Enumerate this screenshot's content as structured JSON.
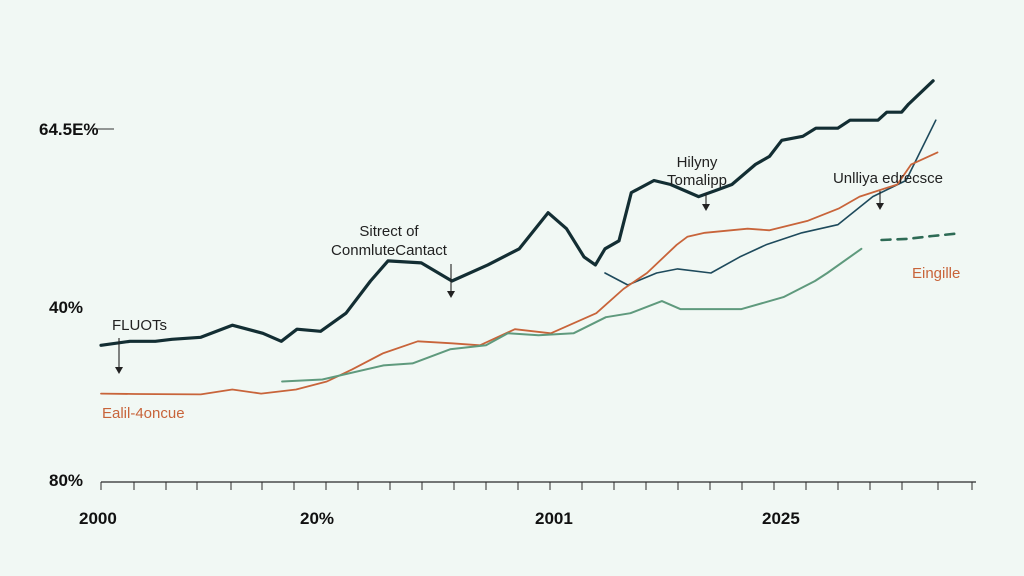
{
  "chart_data": {
    "type": "line",
    "title": "",
    "xlabel": "",
    "ylabel": "",
    "grid": false,
    "x_range": [
      0,
      100
    ],
    "y_range": [
      0,
      100
    ],
    "y_tick_labels": [
      "80%",
      "40%",
      "64.5E%"
    ],
    "x_tick_labels": [
      "2000",
      "20%",
      "2001",
      "2025"
    ],
    "colors": {
      "dark": "#132e33",
      "navy": "#1e4a5c",
      "orange": "#c8643a",
      "green": "#5f9a7d",
      "green_label": "#c8643a"
    },
    "series": [
      {
        "name": "FLUOTs",
        "color": "#132e33",
        "x": [
          0,
          3.3,
          6.2,
          8.1,
          11.4,
          15.0,
          18.5,
          20.6,
          22.4,
          25.1,
          28.0,
          30.8,
          32.8,
          36.6,
          40.1,
          44.2,
          47.8,
          51.1,
          53.2,
          55.2,
          56.5,
          57.6,
          59.2,
          60.6,
          63.2,
          65.1,
          68.3,
          70.2,
          72.1,
          74.8,
          76.4,
          77.8,
          80.2,
          81.7,
          84.2,
          85.6,
          88.8,
          89.8,
          91.5,
          92.3,
          95.1
        ],
        "y": [
          34,
          35,
          35,
          35.5,
          36,
          39,
          37,
          35,
          38,
          37.5,
          42,
          50,
          55,
          54.5,
          50,
          54,
          58,
          67,
          63,
          56,
          54,
          58,
          60,
          72,
          75,
          74,
          71,
          72.5,
          74,
          79,
          81,
          85,
          86,
          88,
          88,
          90,
          90,
          92,
          92,
          94,
          99.8
        ]
      },
      {
        "name": "Unlliya edrecsce",
        "color": "#1e4a5c",
        "x": [
          57.6,
          60.2,
          63.5,
          65.9,
          69.7,
          73.0,
          76.0,
          80.1,
          84.2,
          88.2,
          92.0,
          95.4
        ],
        "y": [
          52,
          49,
          52,
          53,
          52,
          56,
          59,
          62,
          64,
          71,
          75,
          90
        ]
      },
      {
        "name": "Ealil-4oncue",
        "color": "#c8643a",
        "x": [
          0,
          3.9,
          11.4,
          15.0,
          18.3,
          22.3,
          25.8,
          28.7,
          32.2,
          36.2,
          40.1,
          43.3,
          47.3,
          51.4,
          56.6,
          59.7,
          62.4,
          65.8,
          67.0,
          69.0,
          73.9,
          76.4,
          80.8,
          84.3,
          86.7,
          91.0,
          92.6,
          95.6
        ],
        "y": [
          22,
          21.9,
          21.8,
          23,
          22,
          23,
          25,
          28,
          32,
          35,
          34.5,
          34,
          38,
          37,
          42,
          48,
          52,
          59,
          61,
          62,
          63,
          62.6,
          65,
          68,
          71,
          74,
          79,
          82
        ]
      },
      {
        "name": "Eingille",
        "color": "#5f9a7d",
        "x": [
          20.7,
          25.3,
          32.3,
          35.6,
          39.9,
          44.0,
          46.5,
          50.0,
          54.0,
          57.7,
          60.5,
          64.1,
          66.2,
          69.3,
          73.2,
          78.0,
          81.6,
          83.0,
          86.9
        ],
        "y": [
          25,
          25.5,
          29,
          29.5,
          33,
          34,
          37,
          36.5,
          37,
          41,
          42,
          45,
          43,
          43,
          43,
          46,
          50,
          52,
          58
        ]
      },
      {
        "name": "Eingille (projection)",
        "color": "#2e6b55",
        "dashed": true,
        "x": [
          89.2,
          92.3,
          95.0,
          97.8
        ],
        "y": [
          60.2,
          60.5,
          61.2,
          61.8
        ]
      }
    ],
    "annotations": [
      {
        "lines": [
          "FLUOTs"
        ],
        "x": 2.0,
        "y": 34.7
      },
      {
        "lines": [
          "Sitrect of",
          "ConmluteCantact"
        ],
        "x": 39.6,
        "y": 49.5
      },
      {
        "lines": [
          "Hilyny",
          "Tomalipp"
        ],
        "x": 68.6,
        "y": 75.5
      },
      {
        "lines": [
          "Unlliya edrecsce"
        ],
        "x": 89.0,
        "y": 77.0
      }
    ],
    "series_labels": [
      {
        "text": "Ealil-4oncue",
        "color": "#c8643a"
      },
      {
        "text": "Eingille",
        "color": "#c8643a"
      }
    ]
  }
}
